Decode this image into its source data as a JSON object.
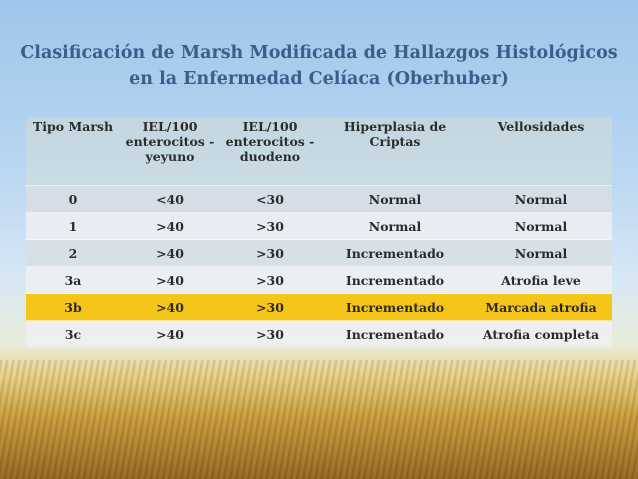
{
  "title": {
    "line1": "Clasificación de Marsh Modificada de Hallazgos Histológicos",
    "line2": "en la Enfermedad Celíaca (Oberhuber)"
  },
  "table": {
    "headers": [
      "Tipo Marsh",
      "IEL/100 enterocitos - yeyuno",
      "IEL/100 enterocitos - duodeno",
      "Hiperplasia de Criptas",
      "Vellosidades"
    ],
    "rows": [
      [
        "0",
        "<40",
        "<30",
        "Normal",
        "Normal"
      ],
      [
        "1",
        ">40",
        ">30",
        "Normal",
        "Normal"
      ],
      [
        "2",
        ">40",
        ">30",
        "Incrementado",
        "Normal"
      ],
      [
        "3a",
        ">40",
        ">30",
        "Incrementado",
        "Atrofia leve"
      ],
      [
        "3b",
        ">40",
        ">30",
        "Incrementado",
        "Marcada atrofia"
      ],
      [
        "3c",
        ">40",
        ">30",
        "Incrementado",
        "Atrofia completa"
      ]
    ],
    "highlight_color": "#f5c51a"
  }
}
